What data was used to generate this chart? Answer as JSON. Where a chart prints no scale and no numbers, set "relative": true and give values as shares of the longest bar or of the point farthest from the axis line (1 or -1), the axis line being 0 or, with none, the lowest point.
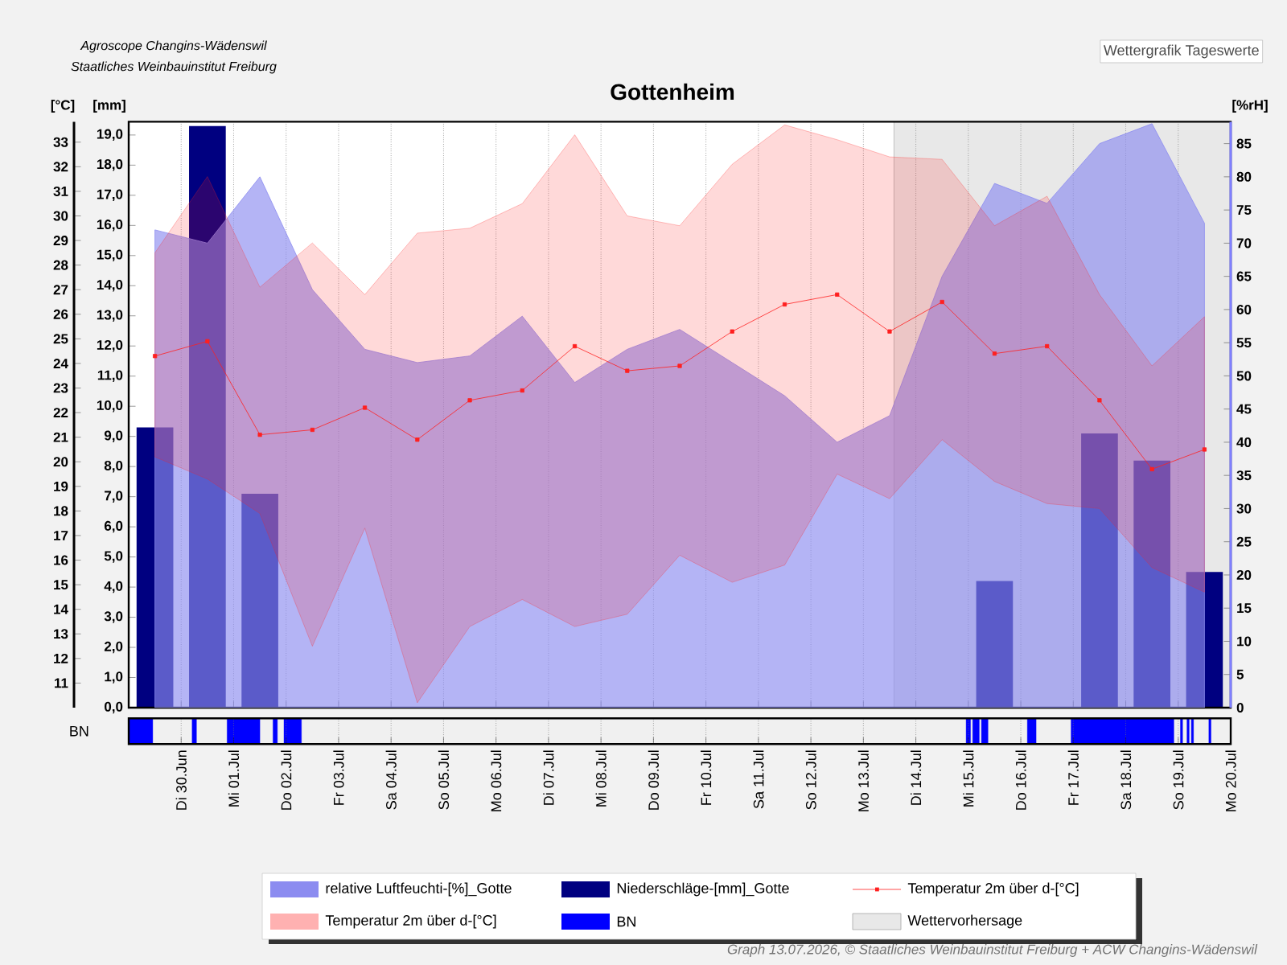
{
  "chart_data": [
    {
      "type": "line",
      "title": "Gottenheim",
      "subtitle": "Wettergrafik Tageswerte",
      "annotations": [
        "Agroscope Changins-Wädenswil",
        "Staatliches Weinbauinstitut Freiburg",
        "Graph 13.07.2026, © Staatliches Weinbauinstitut Freiburg + ACW Changins-Wädenswil"
      ],
      "ylabel": "[mm]",
      "y2label": "[%rH]",
      "y3label": "[°C]",
      "x": [
        "2026-06-29T12:00",
        "2026-06-30T12:00",
        "2026-07-01T12:00",
        "2026-07-02T12:00",
        "2026-07-03T12:00",
        "2026-07-04T12:00",
        "2026-07-05T12:00",
        "2026-07-06T12:00",
        "2026-07-07T12:00",
        "2026-07-08T12:00",
        "2026-07-09T12:00",
        "2026-07-10T12:00",
        "2026-07-11T12:00",
        "2026-07-12T12:00",
        "2026-07-13T12:00",
        "2026-07-14T12:00",
        "2026-07-15T12:00",
        "2026-07-16T12:00",
        "2026-07-17T12:00",
        "2026-07-18T12:00",
        "2026-07-19T12:00"
      ],
      "xlim": [
        "2026-06-29",
        "2026-07-20"
      ],
      "xticks": [
        {
          "value": "2026-06-30",
          "label": null
        },
        {
          "value": "2026-07-01",
          "label": null
        },
        {
          "value": "2026-07-02",
          "label": null
        },
        {
          "value": "2026-07-03",
          "label": null
        },
        {
          "value": "2026-07-04",
          "label": null
        },
        {
          "value": "2026-07-05",
          "label": null
        },
        {
          "value": "2026-07-06",
          "label": null
        },
        {
          "value": "2026-07-07",
          "label": null
        },
        {
          "value": "2026-07-08",
          "label": null
        },
        {
          "value": "2026-07-09",
          "label": null
        },
        {
          "value": "2026-07-10",
          "label": null
        },
        {
          "value": "2026-07-11",
          "label": null
        },
        {
          "value": "2026-07-12",
          "label": null
        },
        {
          "value": "2026-07-13",
          "label": null
        },
        {
          "value": "2026-07-14",
          "label": null
        },
        {
          "value": "2026-07-15",
          "label": null
        },
        {
          "value": "2026-07-16",
          "label": null
        },
        {
          "value": "2026-07-17",
          "label": null
        },
        {
          "value": "2026-07-18",
          "label": null
        },
        {
          "value": "2026-07-19",
          "label": null
        },
        {
          "value": "2026-07-20",
          "label": null
        }
      ],
      "ylim": [
        0,
        19.44
      ],
      "yticks": [
        {
          "value": 0,
          "label": "0,0"
        },
        {
          "value": 1,
          "label": "1,0"
        },
        {
          "value": 2,
          "label": "2,0"
        },
        {
          "value": 3,
          "label": "3,0"
        },
        {
          "value": 4,
          "label": "4,0"
        },
        {
          "value": 5,
          "label": "5,0"
        },
        {
          "value": 6,
          "label": "6,0"
        },
        {
          "value": 7,
          "label": "7,0"
        },
        {
          "value": 8,
          "label": "8,0"
        },
        {
          "value": 9,
          "label": "9,0"
        },
        {
          "value": 10,
          "label": "10,0"
        },
        {
          "value": 11,
          "label": "11,0"
        },
        {
          "value": 12,
          "label": "12,0"
        },
        {
          "value": 13,
          "label": "13,0"
        },
        {
          "value": 14,
          "label": "14,0"
        },
        {
          "value": 15,
          "label": "15,0"
        },
        {
          "value": 16,
          "label": "16,0"
        },
        {
          "value": 17,
          "label": "17,0"
        },
        {
          "value": 18,
          "label": "18,0"
        },
        {
          "value": 19,
          "label": "19,0"
        }
      ],
      "y2lim": [
        0,
        88.3
      ],
      "y2ticks": [
        0,
        5,
        10,
        15,
        20,
        25,
        30,
        35,
        40,
        45,
        50,
        55,
        60,
        65,
        70,
        75,
        80,
        85
      ],
      "y3lim": [
        10,
        33.83
      ],
      "y3ticks": [
        11,
        12,
        13,
        14,
        15,
        16,
        17,
        18,
        19,
        20,
        21,
        22,
        23,
        24,
        25,
        26,
        27,
        28,
        29,
        30,
        31,
        32,
        33
      ],
      "grid": "x",
      "legend": "bottom",
      "tick_labels": "y",
      "bands": [
        {
          "axis": "x",
          "from": "2026-07-13T14:00",
          "to": "2026-07-20",
          "label": "Wettervorhersage",
          "color": "#e8e8e8"
        }
      ],
      "series": [
        {
          "name": "relative Luftfeuchti-[%]_Gotte",
          "type": "area",
          "axis": "y2",
          "color": "#8c8cf0",
          "values": [
            72,
            70,
            80,
            63,
            54,
            52,
            53,
            59,
            49,
            54,
            57,
            52,
            47,
            40,
            44,
            65,
            79,
            76,
            85,
            88,
            73
          ]
        },
        {
          "name": "Niederschläge-[mm]_Gotte",
          "type": "bar",
          "color": "#000080",
          "values": [
            9.3,
            19.3,
            7.1,
            0,
            0,
            0,
            0,
            0,
            0,
            0,
            0,
            0,
            0,
            0,
            0,
            0,
            4.2,
            0,
            9.1,
            8.2,
            4.5
          ]
        },
        {
          "name": "Temperatur 2m über d-[°C]",
          "type": "line",
          "axis": "y3",
          "color": "#ff2020",
          "marker": "square",
          "values": [
            24.3,
            24.9,
            21.1,
            21.3,
            22.2,
            20.9,
            22.5,
            22.9,
            24.7,
            23.7,
            23.9,
            25.3,
            26.4,
            26.8,
            25.3,
            26.5,
            24.4,
            24.7,
            22.5,
            19.7,
            20.5
          ],
          "upper": [
            28.5,
            31.6,
            27.1,
            28.9,
            26.8,
            29.3,
            29.5,
            30.5,
            33.3,
            30.0,
            29.6,
            32.1,
            33.7,
            33.1,
            32.4,
            32.3,
            29.6,
            30.8,
            26.8,
            23.9,
            25.9
          ],
          "lower": [
            20.2,
            19.3,
            17.9,
            12.5,
            17.3,
            10.2,
            13.3,
            14.4,
            13.3,
            13.8,
            16.2,
            15.1,
            15.8,
            19.5,
            18.5,
            20.9,
            19.2,
            18.3,
            18.1,
            15.7,
            14.7
          ]
        }
      ]
    },
    {
      "type": "area",
      "relative": true,
      "ylabel": "BN",
      "grid": "x",
      "xlim": [
        "2026-06-29",
        "2026-07-20"
      ],
      "xticks": [
        {
          "value": "2026-06-30",
          "label": "Di 30.Jun"
        },
        {
          "value": "2026-07-01",
          "label": "Mi 01.Jul"
        },
        {
          "value": "2026-07-02",
          "label": "Do 02.Jul"
        },
        {
          "value": "2026-07-03",
          "label": "Fr 03.Jul"
        },
        {
          "value": "2026-07-04",
          "label": "Sa 04.Jul"
        },
        {
          "value": "2026-07-05",
          "label": "So 05.Jul"
        },
        {
          "value": "2026-07-06",
          "label": "Mo 06.Jul"
        },
        {
          "value": "2026-07-07",
          "label": "Di 07.Jul"
        },
        {
          "value": "2026-07-08",
          "label": "Mi 08.Jul"
        },
        {
          "value": "2026-07-09",
          "label": "Do 09.Jul"
        },
        {
          "value": "2026-07-10",
          "label": "Fr 10.Jul"
        },
        {
          "value": "2026-07-11",
          "label": "Sa 11.Jul"
        },
        {
          "value": "2026-07-12",
          "label": "So 12.Jul"
        },
        {
          "value": "2026-07-13",
          "label": "Mo 13.Jul"
        },
        {
          "value": "2026-07-14",
          "label": "Di 14.Jul"
        },
        {
          "value": "2026-07-15",
          "label": "Mi 15.Jul"
        },
        {
          "value": "2026-07-16",
          "label": "Do 16.Jul"
        },
        {
          "value": "2026-07-17",
          "label": "Fr 17.Jul"
        },
        {
          "value": "2026-07-18",
          "label": "Sa 18.Jul"
        },
        {
          "value": "2026-07-19",
          "label": "So 19.Jul"
        },
        {
          "value": "2026-07-20",
          "label": "Mo 20.Jul"
        }
      ],
      "series": [
        {
          "name": "BN",
          "color": "#0000ff",
          "x": [
            "2026-06-29T00:00",
            "2026-06-29T00:00",
            "2026-06-29T11:00",
            "2026-06-29T11:00",
            "2026-06-30T05:00",
            "2026-06-30T05:00",
            "2026-06-30T07:00",
            "2026-06-30T07:00",
            "2026-06-30T21:00",
            "2026-06-30T21:00",
            "2026-07-01T12:00",
            "2026-07-01T12:00",
            "2026-07-01T18:00",
            "2026-07-01T18:00",
            "2026-07-01T20:00",
            "2026-07-01T20:00",
            "2026-07-01T23:00",
            "2026-07-01T23:00",
            "2026-07-02T07:00",
            "2026-07-02T07:00",
            "2026-07-14T23:00",
            "2026-07-14T23:00",
            "2026-07-15T01:00",
            "2026-07-15T01:00",
            "2026-07-15T02:00",
            "2026-07-15T02:00",
            "2026-07-15T05:00",
            "2026-07-15T05:00",
            "2026-07-15T06:00",
            "2026-07-15T06:00",
            "2026-07-15T09:00",
            "2026-07-15T09:00",
            "2026-07-16T03:00",
            "2026-07-16T03:00",
            "2026-07-16T07:00",
            "2026-07-16T07:00",
            "2026-07-16T23:00",
            "2026-07-16T23:00",
            "2026-07-18T22:00",
            "2026-07-18T22:00",
            "2026-07-19T01:00",
            "2026-07-19T01:00",
            "2026-07-19T02:00",
            "2026-07-19T02:00",
            "2026-07-19T04:00",
            "2026-07-19T04:00",
            "2026-07-19T05:00",
            "2026-07-19T05:00",
            "2026-07-19T06:00",
            "2026-07-19T06:00",
            "2026-07-19T07:00",
            "2026-07-19T07:00",
            "2026-07-19T14:00",
            "2026-07-19T14:00",
            "2026-07-19T15:00",
            "2026-07-19T15:00"
          ],
          "values": [
            0,
            1,
            1,
            0,
            0,
            1,
            1,
            0,
            0,
            1,
            1,
            0,
            0,
            1,
            1,
            0,
            0,
            1,
            1,
            0,
            0,
            1,
            1,
            0,
            0,
            1,
            1,
            0,
            0,
            1,
            1,
            0,
            0,
            1,
            1,
            0,
            0,
            1,
            1,
            0,
            0,
            1,
            1,
            0,
            0,
            1,
            1,
            0,
            0,
            1,
            1,
            0,
            0,
            1,
            1,
            0
          ]
        }
      ]
    }
  ]
}
